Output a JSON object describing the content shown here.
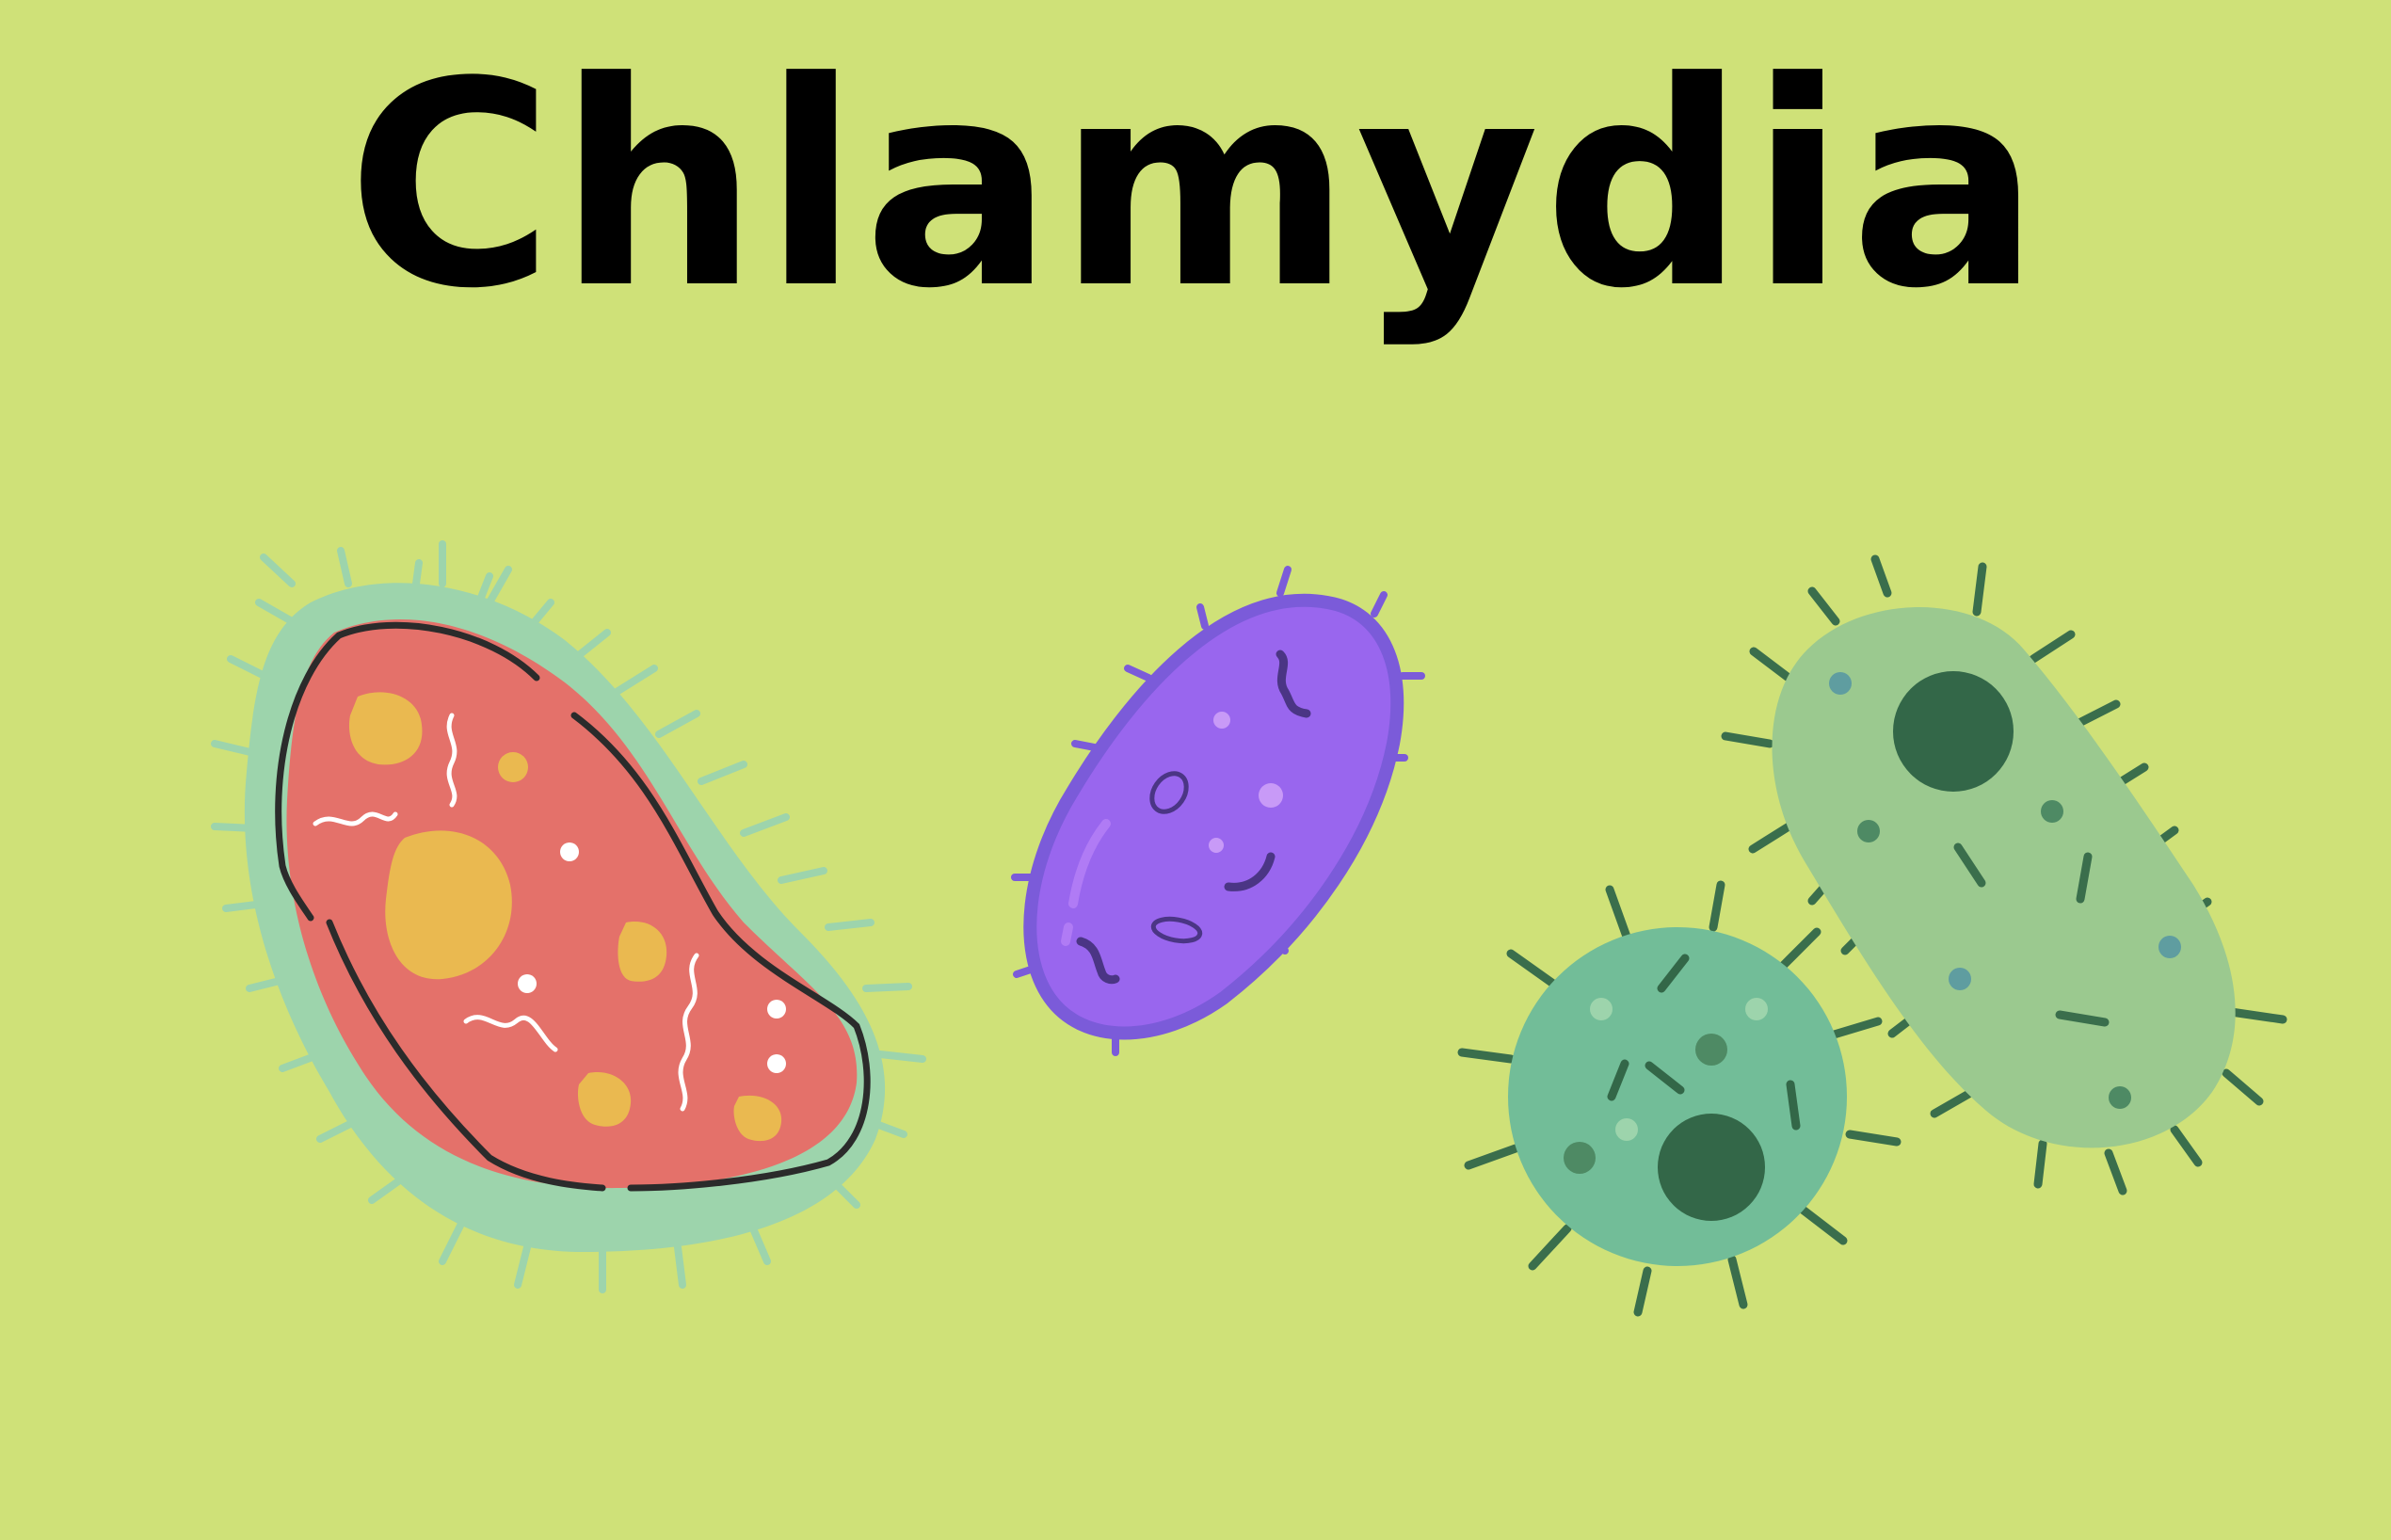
{
  "title": "Chlamydia",
  "colors": {
    "background": "#cfe178",
    "title_text": "#000000",
    "red_cell_body": "#e4716a",
    "red_cell_capsule": "#9dd4ac",
    "red_cell_granules": "#eab950",
    "purple_cell_body": "#9966ee",
    "purple_cell_outline": "#7b5bd9",
    "round_cell_body": "#72bd98",
    "rod_cell_body": "#9bc98f",
    "nucleus_dark": "#336748",
    "cilia_dark": "#3a6e4c"
  },
  "illustrations": [
    {
      "name": "red-oval-bacterium-icon"
    },
    {
      "name": "purple-capsule-bacterium-icon"
    },
    {
      "name": "green-round-bacterium-icon"
    },
    {
      "name": "green-rod-bacterium-icon"
    }
  ]
}
